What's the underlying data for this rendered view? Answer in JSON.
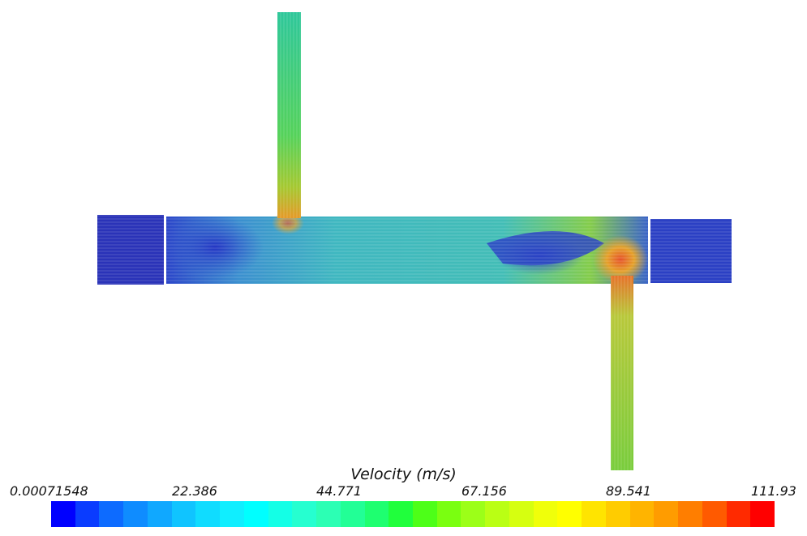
{
  "legend": {
    "title": "Velocity (m/s)",
    "ticks": [
      "0.00071548",
      "22.386",
      "44.771",
      "67.156",
      "89.541",
      "111.93"
    ],
    "colors": [
      "#0000ff",
      "#0a3cff",
      "#0d6bff",
      "#0f8cff",
      "#10a8ff",
      "#10c4ff",
      "#10dcff",
      "#10eeff",
      "#00ffff",
      "#14ffe6",
      "#26ffd0",
      "#2cffb4",
      "#22ff96",
      "#1eff70",
      "#20ff3c",
      "#4dff18",
      "#7aff10",
      "#9cff18",
      "#baff14",
      "#d6ff10",
      "#f0ff0a",
      "#ffff00",
      "#ffe400",
      "#ffcc00",
      "#ffb400",
      "#ff9c00",
      "#ff7e00",
      "#ff5a00",
      "#ff2a00",
      "#ff0000"
    ]
  },
  "flow": {
    "main_duct_color": "#3fb6bf",
    "inlet_color": "#2f3fc8",
    "jet_color": "#6fd440",
    "hot_color": "#e5a12a"
  }
}
